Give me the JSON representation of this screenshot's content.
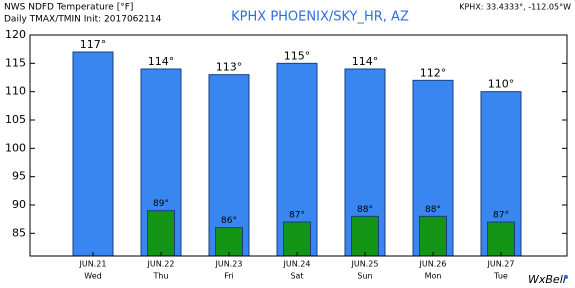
{
  "chart_data": {
    "type": "bar",
    "title": "NWS NDFD Temperature [°F]",
    "subtitle": "Daily TMAX/TMIN Init: 2017062114",
    "station": "KPHX PHOENIX/SKY_HR, AZ",
    "coordinates": "KPHX: 33.4333°, -112.05°W",
    "logo": "WxBell",
    "categories": [
      "JUN.21",
      "JUN.22",
      "JUN.23",
      "JUN.24",
      "JUN.25",
      "JUN.26",
      "JUN.27"
    ],
    "weekdays": [
      "Wed",
      "Thu",
      "Fri",
      "Sat",
      "Sun",
      "Mon",
      "Tue"
    ],
    "series": [
      {
        "color": "#3a86f0",
        "values": [
          117,
          114,
          113,
          115,
          114,
          112,
          110
        ],
        "value_labels": [
          "117°",
          "114°",
          "113°",
          "115°",
          "114°",
          "112°",
          "110°"
        ]
      },
      {
        "color": "#149414",
        "values": [
          null,
          89,
          86,
          87,
          88,
          88,
          87
        ],
        "value_labels": [
          null,
          "89°",
          "86°",
          "87°",
          "88°",
          "88°",
          "87°"
        ]
      }
    ],
    "ylim": [
      81,
      120
    ],
    "yticks": [
      85,
      90,
      95,
      100,
      105,
      110,
      115,
      120
    ]
  }
}
